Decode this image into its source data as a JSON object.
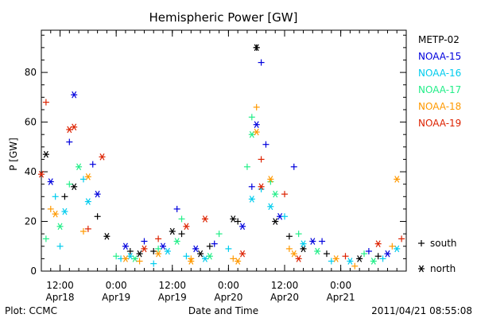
{
  "chart_data": {
    "type": "scatter",
    "title": "Hemispheric Power [GW]",
    "ylabel": "P [GW]",
    "xlabel": "Date and Time",
    "ylim": [
      0,
      97
    ],
    "yticks": [
      0,
      20,
      40,
      60,
      80
    ],
    "xlim": [
      "2011-04-18 08:00",
      "2011-04-21 14:00"
    ],
    "xticks": [
      {
        "at": "2011-04-18 12:00",
        "time": "12:00",
        "date": "Apr18"
      },
      {
        "at": "2011-04-19 00:00",
        "time": "0:00",
        "date": "Apr19"
      },
      {
        "at": "2011-04-19 12:00",
        "time": "12:00",
        "date": "Apr19"
      },
      {
        "at": "2011-04-20 00:00",
        "time": "0:00",
        "date": "Apr20"
      },
      {
        "at": "2011-04-20 12:00",
        "time": "12:00",
        "date": "Apr20"
      },
      {
        "at": "2011-04-21 00:00",
        "time": "0:00",
        "date": "Apr21"
      }
    ],
    "marker_legend": [
      {
        "symbol": "+",
        "label": "south"
      },
      {
        "symbol": "*",
        "label": "north"
      }
    ],
    "series": [
      {
        "name": "METP-02",
        "color": "#000000",
        "south": [
          [
            "2011-04-18 13:00",
            30
          ],
          [
            "2011-04-18 20:00",
            22
          ],
          [
            "2011-04-19 03:00",
            8
          ],
          [
            "2011-04-19 08:00",
            8
          ],
          [
            "2011-04-19 14:00",
            15
          ],
          [
            "2011-04-19 20:00",
            10
          ],
          [
            "2011-04-20 02:00",
            20
          ],
          [
            "2011-04-20 06:00",
            90
          ],
          [
            "2011-04-20 13:00",
            14
          ],
          [
            "2011-04-20 21:00",
            7
          ],
          [
            "2011-04-21 08:00",
            6
          ]
        ],
        "north": [
          [
            "2011-04-18 09:00",
            47
          ],
          [
            "2011-04-18 15:00",
            34
          ],
          [
            "2011-04-18 22:00",
            14
          ],
          [
            "2011-04-19 05:00",
            7
          ],
          [
            "2011-04-19 12:00",
            16
          ],
          [
            "2011-04-19 18:00",
            7
          ],
          [
            "2011-04-20 01:00",
            21
          ],
          [
            "2011-04-20 06:00",
            90
          ],
          [
            "2011-04-20 10:00",
            20
          ],
          [
            "2011-04-20 16:00",
            9
          ],
          [
            "2011-04-21 04:00",
            5
          ]
        ]
      },
      {
        "name": "NOAA-15",
        "color": "#0000dd",
        "south": [
          [
            "2011-04-18 14:00",
            52
          ],
          [
            "2011-04-18 19:00",
            43
          ],
          [
            "2011-04-19 06:00",
            12
          ],
          [
            "2011-04-19 13:00",
            25
          ],
          [
            "2011-04-19 21:00",
            11
          ],
          [
            "2011-04-20 05:00",
            34
          ],
          [
            "2011-04-20 07:00",
            84
          ],
          [
            "2011-04-20 08:00",
            51
          ],
          [
            "2011-04-20 14:00",
            42
          ],
          [
            "2011-04-20 20:00",
            12
          ],
          [
            "2011-04-21 06:00",
            8
          ]
        ],
        "north": [
          [
            "2011-04-18 10:00",
            36
          ],
          [
            "2011-04-18 15:00",
            71
          ],
          [
            "2011-04-18 20:00",
            31
          ],
          [
            "2011-04-19 02:00",
            10
          ],
          [
            "2011-04-19 10:00",
            10
          ],
          [
            "2011-04-19 17:00",
            9
          ],
          [
            "2011-04-20 03:00",
            18
          ],
          [
            "2011-04-20 06:00",
            59
          ],
          [
            "2011-04-20 11:00",
            22
          ],
          [
            "2011-04-20 18:00",
            12
          ],
          [
            "2011-04-21 10:00",
            7
          ]
        ]
      },
      {
        "name": "NOAA-16",
        "color": "#00ccee",
        "south": [
          [
            "2011-04-18 11:00",
            30
          ],
          [
            "2011-04-18 12:00",
            10
          ],
          [
            "2011-04-18 17:00",
            37
          ],
          [
            "2011-04-19 01:00",
            5
          ],
          [
            "2011-04-19 08:00",
            3
          ],
          [
            "2011-04-19 15:00",
            6
          ],
          [
            "2011-04-20 00:00",
            9
          ],
          [
            "2011-04-20 07:00",
            33
          ],
          [
            "2011-04-20 12:00",
            22
          ],
          [
            "2011-04-20 22:00",
            4
          ],
          [
            "2011-04-21 09:00",
            5
          ]
        ],
        "north": [
          [
            "2011-04-18 13:00",
            24
          ],
          [
            "2011-04-18 18:00",
            28
          ],
          [
            "2011-04-19 03:00",
            6
          ],
          [
            "2011-04-19 11:00",
            8
          ],
          [
            "2011-04-19 19:00",
            5
          ],
          [
            "2011-04-20 05:00",
            29
          ],
          [
            "2011-04-20 09:00",
            26
          ],
          [
            "2011-04-20 16:00",
            11
          ],
          [
            "2011-04-21 02:00",
            4
          ],
          [
            "2011-04-21 12:00",
            9
          ]
        ]
      },
      {
        "name": "NOAA-17",
        "color": "#22ee88",
        "south": [
          [
            "2011-04-18 09:00",
            13
          ],
          [
            "2011-04-18 14:00",
            35
          ],
          [
            "2011-04-19 00:00",
            6
          ],
          [
            "2011-04-19 09:00",
            9
          ],
          [
            "2011-04-19 14:00",
            21
          ],
          [
            "2011-04-19 22:00",
            15
          ],
          [
            "2011-04-20 04:00",
            42
          ],
          [
            "2011-04-20 05:00",
            62
          ],
          [
            "2011-04-20 09:00",
            36
          ],
          [
            "2011-04-20 15:00",
            15
          ],
          [
            "2011-04-21 05:00",
            7
          ]
        ],
        "north": [
          [
            "2011-04-18 12:00",
            18
          ],
          [
            "2011-04-18 16:00",
            42
          ],
          [
            "2011-04-19 04:00",
            5
          ],
          [
            "2011-04-19 13:00",
            12
          ],
          [
            "2011-04-19 20:00",
            6
          ],
          [
            "2011-04-20 05:00",
            55
          ],
          [
            "2011-04-20 10:00",
            31
          ],
          [
            "2011-04-20 19:00",
            8
          ],
          [
            "2011-04-21 07:00",
            4
          ]
        ]
      },
      {
        "name": "NOAA-18",
        "color": "#ff9900",
        "south": [
          [
            "2011-04-18 10:00",
            25
          ],
          [
            "2011-04-18 17:00",
            16
          ],
          [
            "2011-04-19 05:00",
            4
          ],
          [
            "2011-04-19 16:00",
            5
          ],
          [
            "2011-04-20 01:00",
            5
          ],
          [
            "2011-04-20 06:00",
            66
          ],
          [
            "2011-04-20 13:00",
            9
          ],
          [
            "2011-04-21 03:00",
            2
          ],
          [
            "2011-04-21 11:00",
            10
          ]
        ],
        "north": [
          [
            "2011-04-18 11:00",
            23
          ],
          [
            "2011-04-18 18:00",
            38
          ],
          [
            "2011-04-19 02:00",
            5
          ],
          [
            "2011-04-19 09:00",
            7
          ],
          [
            "2011-04-19 16:00",
            4
          ],
          [
            "2011-04-20 02:00",
            4
          ],
          [
            "2011-04-20 06:00",
            56
          ],
          [
            "2011-04-20 09:00",
            37
          ],
          [
            "2011-04-20 14:00",
            7
          ],
          [
            "2011-04-20 23:00",
            5
          ],
          [
            "2011-04-21 12:00",
            37
          ]
        ]
      },
      {
        "name": "NOAA-19",
        "color": "#dd2200",
        "south": [
          [
            "2011-04-18 09:00",
            68
          ],
          [
            "2011-04-18 18:00",
            17
          ],
          [
            "2011-04-19 09:00",
            13
          ],
          [
            "2011-04-20 07:00",
            45
          ],
          [
            "2011-04-20 12:00",
            31
          ],
          [
            "2011-04-21 01:00",
            6
          ],
          [
            "2011-04-21 13:00",
            13
          ]
        ],
        "north": [
          [
            "2011-04-18 08:00",
            39
          ],
          [
            "2011-04-18 14:00",
            57
          ],
          [
            "2011-04-18 15:00",
            58
          ],
          [
            "2011-04-18 21:00",
            46
          ],
          [
            "2011-04-19 06:00",
            9
          ],
          [
            "2011-04-19 15:00",
            18
          ],
          [
            "2011-04-19 19:00",
            21
          ],
          [
            "2011-04-20 03:00",
            7
          ],
          [
            "2011-04-20 07:00",
            34
          ],
          [
            "2011-04-20 15:00",
            5
          ],
          [
            "2011-04-21 08:00",
            11
          ]
        ]
      }
    ]
  },
  "footer": {
    "left": "Plot: CCMC",
    "right": "2011/04/21 08:55:08"
  }
}
